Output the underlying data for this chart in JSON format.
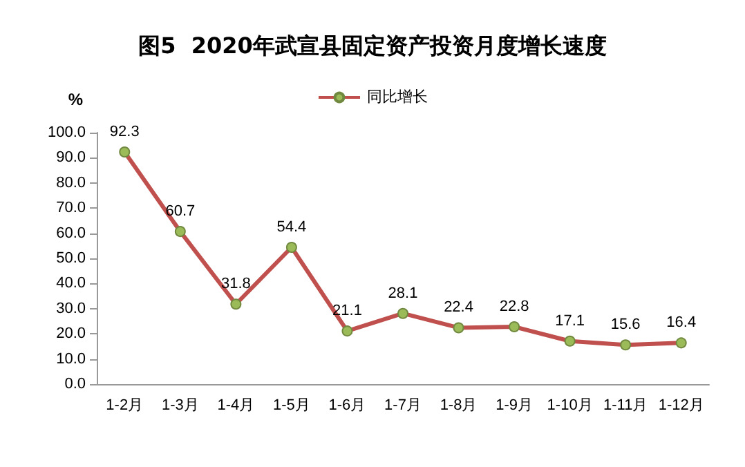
{
  "chart_data": {
    "type": "line",
    "title": "图5  2020年武宣县固定资产投资月度增长速度",
    "ylabel": "%",
    "categories": [
      "1-2月",
      "1-3月",
      "1-4月",
      "1-5月",
      "1-6月",
      "1-7月",
      "1-8月",
      "1-9月",
      "1-10月",
      "1-11月",
      "1-12月"
    ],
    "series": [
      {
        "name": "同比增长",
        "color": "#c0504d",
        "values": [
          92.3,
          60.7,
          31.8,
          54.4,
          21.1,
          28.1,
          22.4,
          22.8,
          17.1,
          15.6,
          16.4
        ]
      }
    ],
    "ylim": [
      0,
      100
    ],
    "yticks": [
      {
        "value": 0,
        "label": "0.0"
      },
      {
        "value": 10,
        "label": "10.0"
      },
      {
        "value": 20,
        "label": "20.0"
      },
      {
        "value": 30,
        "label": "30.0"
      },
      {
        "value": 40,
        "label": "40.0"
      },
      {
        "value": 50,
        "label": "50.0"
      },
      {
        "value": 60,
        "label": "60.0"
      },
      {
        "value": 70,
        "label": "70.0"
      },
      {
        "value": 80,
        "label": "80.0"
      },
      {
        "value": 90,
        "label": "90.0"
      },
      {
        "value": 100,
        "label": "100.0"
      }
    ],
    "grid": false,
    "legend": "top",
    "marker": "circle",
    "line_style": "solid",
    "data_labels": true
  }
}
